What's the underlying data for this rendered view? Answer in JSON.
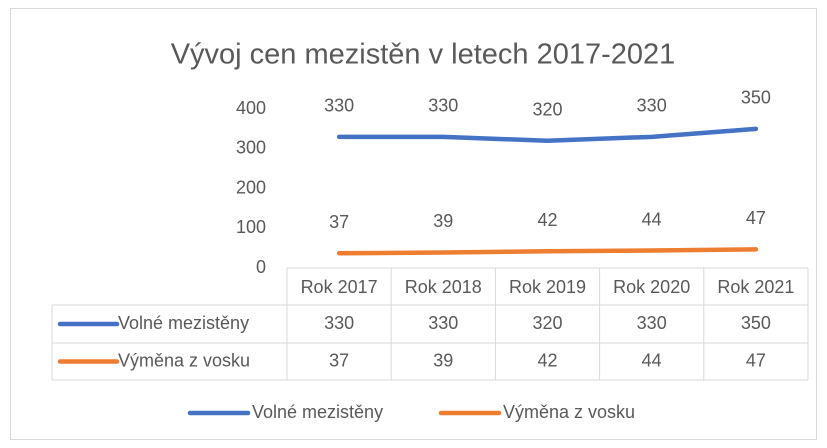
{
  "chart_data": {
    "type": "line",
    "title": "Vývoj cen mezistěn v letech 2017-2021",
    "categories": [
      "Rok 2017",
      "Rok 2018",
      "Rok 2019",
      "Rok 2020",
      "Rok 2021"
    ],
    "series": [
      {
        "name": "Volné mezistěny",
        "color": "#4472c4",
        "values": [
          330,
          330,
          320,
          330,
          350
        ]
      },
      {
        "name": "Výměna z vosku",
        "color": "#ed7d31",
        "values": [
          37,
          39,
          42,
          44,
          47
        ]
      }
    ],
    "ylim": [
      0,
      400
    ],
    "yticks": [
      0,
      100,
      200,
      300,
      400
    ],
    "grid": false,
    "legend": "bottom"
  }
}
